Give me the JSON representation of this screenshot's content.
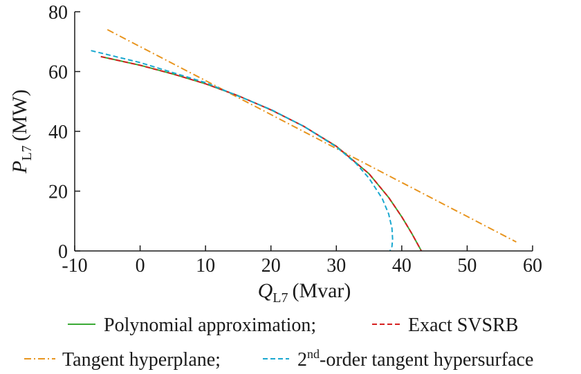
{
  "chart_data": {
    "type": "line",
    "xlabel": {
      "var": "Q",
      "sub": "L7",
      "unit": "(Mvar)"
    },
    "ylabel": {
      "var": "P",
      "sub": "L7",
      "unit": "(MW)"
    },
    "xlim": [
      -10,
      60
    ],
    "ylim": [
      0,
      80
    ],
    "x_ticks": [
      -10,
      0,
      10,
      20,
      30,
      40,
      50,
      60
    ],
    "y_ticks": [
      0,
      20,
      40,
      60,
      80
    ],
    "grid": false,
    "legend_position": "bottom",
    "series": [
      {
        "name": "Polynomial approximation;",
        "color": "#3aaa35",
        "dash": "solid",
        "x": [
          -6,
          0,
          5,
          10,
          15,
          20,
          25,
          30,
          35,
          38,
          40,
          41.5,
          42.5,
          43
        ],
        "y": [
          65,
          62.1,
          59.2,
          55.9,
          51.9,
          47.2,
          41.7,
          35.0,
          25.8,
          17.9,
          11.4,
          6.0,
          2.0,
          0
        ]
      },
      {
        "name": "Exact SVSRB",
        "color": "#d62020",
        "dash": "dashed",
        "x": [
          -6,
          0,
          5,
          10,
          15,
          20,
          25,
          30,
          35,
          38,
          40,
          41.5,
          42.5,
          43
        ],
        "y": [
          65,
          62.1,
          59.2,
          55.9,
          51.9,
          47.2,
          41.7,
          35.0,
          25.8,
          17.9,
          11.4,
          6.0,
          2.0,
          0
        ]
      },
      {
        "name": "Tangent hyperplane;",
        "color": "#e8951f",
        "dash": "dashdot",
        "x": [
          -5,
          57.5
        ],
        "y": [
          74,
          3
        ]
      },
      {
        "name": "2nd-order tangent hypersurface",
        "color": "#1aa8d0",
        "dash": "dashed",
        "x": [
          -7.5,
          0,
          10,
          20,
          25,
          30,
          33,
          35,
          37,
          38,
          38.5,
          38.6,
          38.5,
          38.2
        ],
        "y": [
          67,
          63.0,
          56.3,
          47.3,
          41.7,
          34.8,
          29.3,
          24.3,
          17.6,
          12.4,
          7.6,
          4.0,
          1.5,
          0
        ]
      }
    ],
    "legend": [
      {
        "label": "Polynomial approximation;",
        "color": "#3aaa35",
        "dash": "solid"
      },
      {
        "label": "Exact SVSRB",
        "color": "#d62020",
        "dash": "dashed"
      },
      {
        "label": "Tangent hyperplane;",
        "color": "#e8951f",
        "dash": "dashdot"
      },
      {
        "label_main": "2",
        "label_sup": "nd",
        "label_rest": "-order tangent hypersurface",
        "color": "#1aa8d0",
        "dash": "dashed"
      }
    ]
  }
}
